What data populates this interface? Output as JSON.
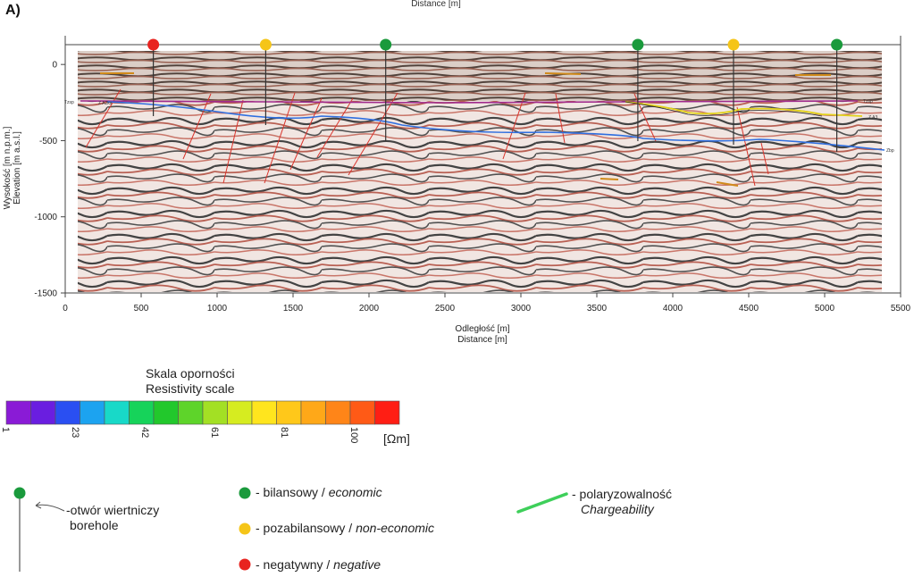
{
  "panel_label": "A)",
  "top_axis_label": "Distance [m]",
  "x_axis": {
    "label_pl": "Odległość [m]",
    "label_en": "Distance [m]",
    "ticks": [
      0,
      500,
      1000,
      1500,
      2000,
      2500,
      3000,
      3500,
      4000,
      4500,
      5000,
      5500
    ],
    "range": [
      0,
      5500
    ]
  },
  "y_axis": {
    "label_pl": "Wysokość [m n.p.m.]",
    "label_en": "Elevation [m a.s.l.]",
    "ticks": [
      0,
      -500,
      -1000,
      -1500
    ],
    "range": [
      -1500,
      130
    ]
  },
  "boreholes": [
    {
      "x": 580,
      "color": "#e8231f",
      "class": "negative"
    },
    {
      "x": 1320,
      "color": "#f5c518",
      "class": "non-economic"
    },
    {
      "x": 2110,
      "color": "#1a9a3c",
      "class": "economic"
    },
    {
      "x": 3770,
      "color": "#1a9a3c",
      "class": "economic"
    },
    {
      "x": 4400,
      "color": "#f5c518",
      "class": "non-economic"
    },
    {
      "x": 5080,
      "color": "#1a9a3c",
      "class": "economic"
    }
  ],
  "horizon_labels": {
    "right_top": "Tzsp",
    "right_mid": "Z A3",
    "right_low": "Zbp",
    "left_top": "Tzsp",
    "left_mid": "Z A2ks"
  },
  "resistivity_scale": {
    "title_pl": "Skala oporności",
    "title_en": "Resistivity scale",
    "unit": "[Ωm]",
    "colors": [
      "#8a1bd6",
      "#6a1ee0",
      "#2a4ff2",
      "#1ca3f0",
      "#18d9c8",
      "#16d35a",
      "#22c82c",
      "#5ed42a",
      "#a3e024",
      "#d6ec20",
      "#ffe51e",
      "#ffc81a",
      "#ffa818",
      "#ff8518",
      "#ff5a16",
      "#ff1e14"
    ],
    "tick_labels": [
      "1",
      "23",
      "42",
      "61",
      "81",
      "100"
    ]
  },
  "legend": {
    "borehole_pl": "-otwór wiertniczy",
    "borehole_en": "borehole",
    "economic_pl": "- bilansowy / ",
    "economic_en": "economic",
    "noneconomic_pl": "- pozabilansowy / ",
    "noneconomic_en": "non-economic",
    "negative_pl": "- negatywny / ",
    "negative_en": "negative",
    "chargeability_pl": "- polaryzowalność",
    "chargeability_en": "Chargeability",
    "economic_color": "#1a9a3c",
    "noneconomic_color": "#f5c518",
    "negative_color": "#e8231f",
    "chargeability_color": "#3ecf5a"
  }
}
